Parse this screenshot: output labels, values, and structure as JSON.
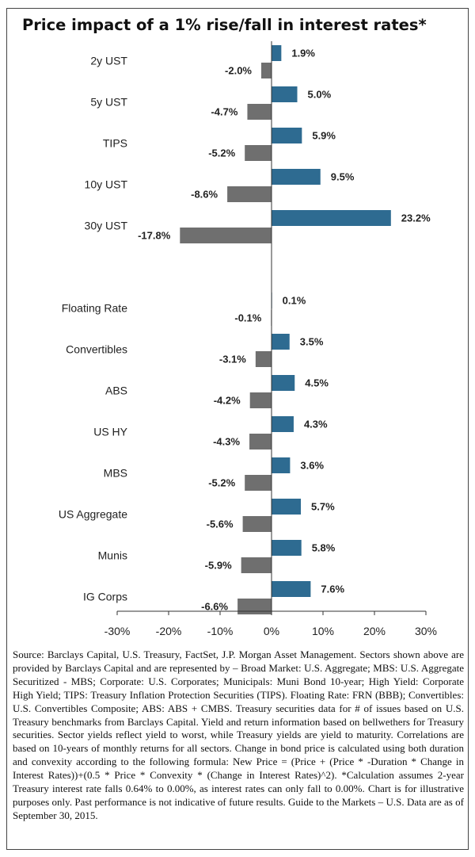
{
  "chart_data": {
    "type": "bar",
    "orientation": "horizontal",
    "title": "Price impact of a 1% rise/fall in interest rates*",
    "categories": [
      "2y UST",
      "5y UST",
      "TIPS",
      "10y UST",
      "30y UST",
      "Floating Rate",
      "Convertibles",
      "ABS",
      "US HY",
      "MBS",
      "US Aggregate",
      "Munis",
      "IG Corps"
    ],
    "series": [
      {
        "values": [
          1.9,
          5.0,
          5.9,
          9.5,
          23.2,
          0.1,
          3.5,
          4.5,
          4.3,
          3.6,
          5.7,
          5.8,
          7.6
        ],
        "color": "#2e6b91"
      },
      {
        "values": [
          -2.0,
          -4.7,
          -5.2,
          -8.6,
          -17.8,
          -0.1,
          -3.1,
          -4.2,
          -4.3,
          -5.2,
          -5.6,
          -5.9,
          -6.6
        ],
        "color": "#6f6f6f"
      }
    ],
    "value_labels_pos": [
      "1.9%",
      "5.0%",
      "5.9%",
      "9.5%",
      "23.2%",
      "0.1%",
      "3.5%",
      "4.5%",
      "4.3%",
      "3.6%",
      "5.7%",
      "5.8%",
      "7.6%"
    ],
    "value_labels_neg": [
      "-2.0%",
      "-4.7%",
      "-5.2%",
      "-8.6%",
      "-17.8%",
      "-0.1%",
      "-3.1%",
      "-4.2%",
      "-4.3%",
      "-5.2%",
      "-5.6%",
      "-5.9%",
      "-6.6%"
    ],
    "xlim": [
      -30,
      30
    ],
    "x_ticks": [
      -30,
      -20,
      -10,
      0,
      10,
      20,
      30
    ],
    "x_tick_labels": [
      "-30%",
      "-20%",
      "-10%",
      "0%",
      "10%",
      "20%",
      "30%"
    ],
    "grid": false,
    "legend": "none"
  },
  "source_text": "Source: Barclays Capital, U.S. Treasury, FactSet, J.P. Morgan Asset Management. Sectors shown above are provided by Barclays Capital and are represented by – Broad Market: U.S. Aggregate; MBS: U.S. Aggregate Securitized - MBS; Corporate: U.S. Corporates; Municipals: Muni Bond 10-year; High Yield: Corporate High Yield; TIPS: Treasury Inflation Protection Securities (TIPS). Floating Rate: FRN (BBB); Convertibles: U.S. Convertibles Composite; ABS: ABS + CMBS. Treasury securities data for # of issues based on U.S. Treasury benchmarks from Barclays Capital. Yield and return information based on bellwethers for Treasury securities. Sector yields reflect yield to worst, while Treasury yields are yield to maturity. Correlations are based on 10-years of monthly returns for all sectors. Change in bond price is calculated using both duration and convexity according to the following formula: New Price = (Price + (Price * -Duration * Change in Interest Rates))+(0.5 * Price * Convexity * (Change in Interest Rates)^2). *Calculation assumes 2-year Treasury interest rate falls 0.64% to 0.00%, as interest rates can only fall to 0.00%. Chart is for illustrative purposes only. Past performance is not indicative of future results. Guide to the Markets – U.S. Data are as of September 30, 2015."
}
